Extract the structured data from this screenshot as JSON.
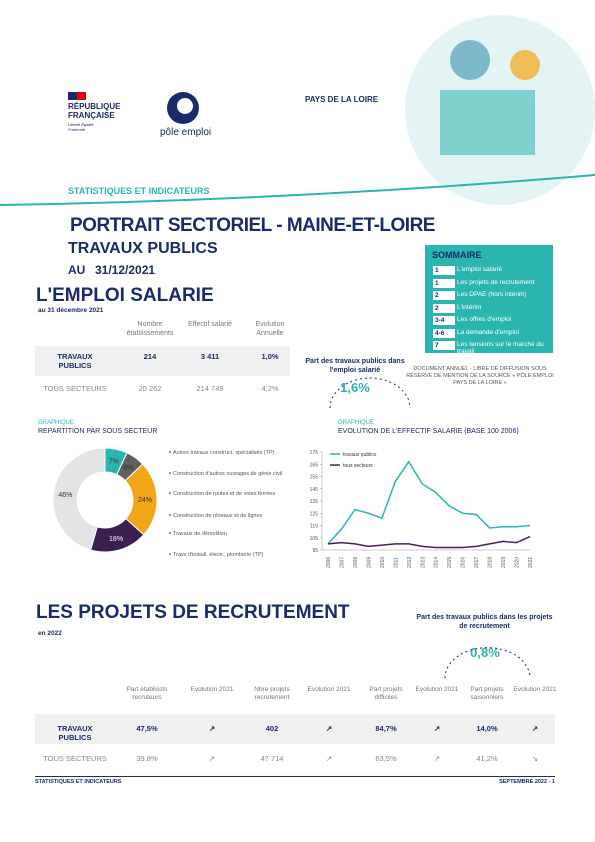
{
  "header": {
    "republic": "RÉPUBLIQUE FRANÇAISE",
    "motto": "Liberté Égalité Fraternité",
    "brand": "pôle emploi",
    "region": "PAYS DE LA LOIRE",
    "series_name": "STATISTIQUES ET INDICATEURS"
  },
  "title": "PORTRAIT SECTORIEL - MAINE-ET-LOIRE",
  "subtitle": "TRAVAUX PUBLICS",
  "date_prefix": "AU",
  "date": "31/12/2021",
  "sommaire": {
    "title": "SOMMAIRE",
    "items": [
      {
        "page": "1",
        "label": "L'emploi salarié"
      },
      {
        "page": "1",
        "label": "Les projets de recrutement"
      },
      {
        "page": "2",
        "label": "Les DPAE (hors intérim)"
      },
      {
        "page": "2",
        "label": "L'intérim"
      },
      {
        "page": "3-4",
        "label": "Les offres d'emploi"
      },
      {
        "page": "4-6",
        "label": "La demande d'emploi"
      },
      {
        "page": "7",
        "label": "Les tensions sur le marché du travail"
      }
    ]
  },
  "note": "DOCUMENT ANNUEL - LIBRE DE DIFFUSION SOUS RÉSERVE DE MENTION DE LA SOURCE « PÔLE EMPLOI PAYS DE LA LOIRE »",
  "emploi": {
    "title": "L'EMPLOI SALARIE",
    "date": "au 31 décembre 2021",
    "table": {
      "headers": [
        "Nombre établissements",
        "Effectif salarié",
        "Evolution Annuelle"
      ],
      "rows": [
        [
          "TRAVAUX PUBLICS",
          "214",
          "3 411",
          "1,0%"
        ],
        [
          "TOUS SECTEURS",
          "20 262",
          "214 749",
          "4,2%"
        ]
      ]
    },
    "share_label": "Part des travaux publics dans l'emploi salarié",
    "share_value": "1,6%"
  },
  "chart_data": [
    {
      "type": "donut",
      "kicker": "GRAPHIQUE",
      "title": "REPARTITION PAR SOUS SECTEUR",
      "categories": [
        "Autres travaux construct. spécialisés (TP)",
        "Construction d'autres ouvrages de génie civil",
        "Construction de routes et de voies ferrées",
        "Construction de réseaux et de lignes",
        "Travaux de démolition",
        "Travx d'install. électr., plomberie (TP)"
      ],
      "values": [
        7,
        6,
        24,
        18,
        null,
        46
      ],
      "value_labels": [
        "7%",
        "6%",
        "24%",
        "18%",
        null,
        "46%"
      ],
      "colors": [
        "#2bb5b0",
        "#5f6062",
        "#f2a516",
        "#3b1f4f",
        "#9a9a9a",
        "#e3e3e3"
      ]
    },
    {
      "type": "line",
      "kicker": "GRAPHIQUE",
      "title": "EVOLUTION DE L'EFFECTIF SALARIE (BASE 100 2006)",
      "categories": [
        "2006",
        "2007",
        "2008",
        "2009",
        "2010",
        "2011",
        "2012",
        "2013",
        "2014",
        "2015",
        "2016",
        "2017",
        "2018",
        "2019",
        "2020",
        "2021"
      ],
      "series": [
        {
          "name": "travaux publics",
          "color": "#2bb5b0",
          "values": [
            100,
            112,
            128,
            125,
            121,
            151,
            167,
            149,
            142,
            131,
            125,
            124,
            113,
            114,
            114,
            115
          ]
        },
        {
          "name": "tous secteurs",
          "color": "#4a1f5c",
          "values": [
            100,
            101,
            100,
            98,
            99,
            100,
            100,
            98,
            97,
            97,
            97,
            98,
            100,
            102,
            101,
            106
          ]
        }
      ],
      "ylim": [
        95,
        175
      ],
      "yticks": [
        95,
        105,
        115,
        125,
        135,
        145,
        155,
        165,
        175
      ],
      "legend": "top-left"
    }
  ],
  "recrutement": {
    "title": "LES PROJETS DE RECRUTEMENT",
    "date": "en 2022",
    "share_label": "Part des travaux publics dans les projets de recrutement",
    "share_value": "0,8%",
    "table": {
      "headers": [
        "Part établissts recruteurs",
        "Evolution 2021",
        "Nbre projets recrutement",
        "Evolution 2021",
        "Part projets difficiles",
        "Evolution 2021",
        "Part projets saisonniers",
        "Evolution 2021"
      ],
      "rows": [
        [
          "TRAVAUX PUBLICS",
          "47,5%",
          "↗",
          "402",
          "↗",
          "84,7%",
          "↗",
          "14,0%",
          "↗"
        ],
        [
          "TOUS SECTEURS",
          "39,8%",
          "↗",
          "47 714",
          "↗",
          "63,5%",
          "↗",
          "41,2%",
          "↘"
        ]
      ]
    }
  },
  "footer": {
    "left": "STATISTIQUES ET INDICATEURS",
    "right": "SEPTEMBRE 2022 - 1"
  }
}
